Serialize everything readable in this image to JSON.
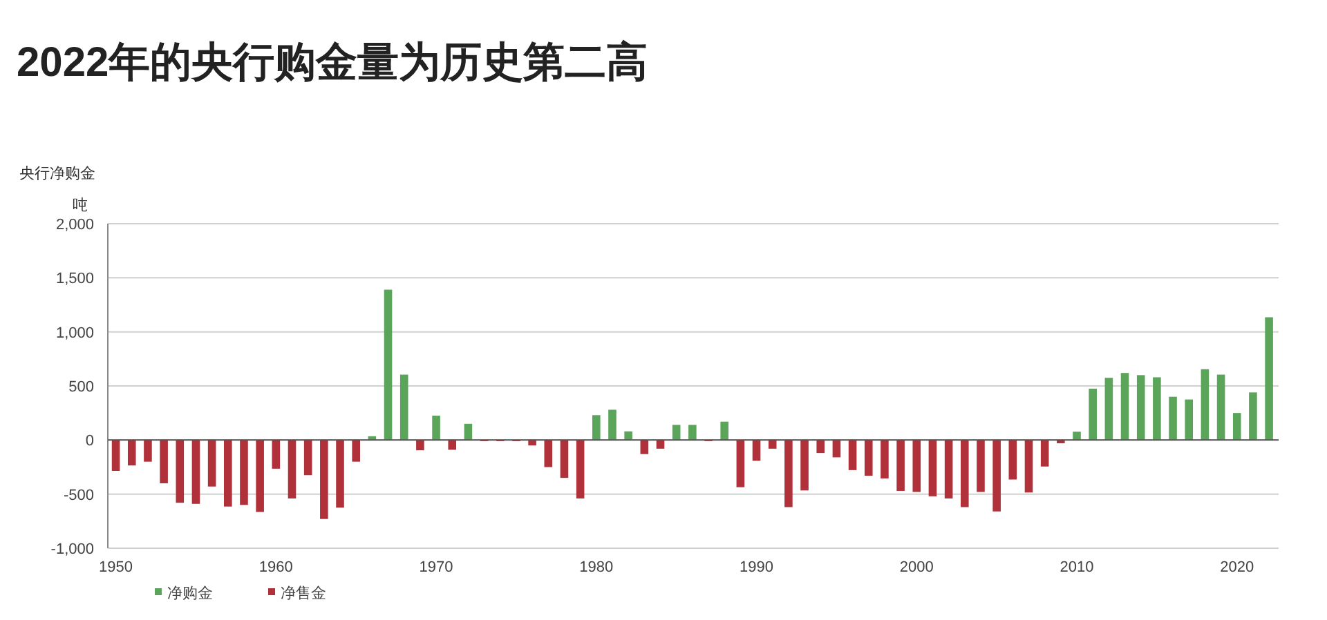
{
  "chart_data": {
    "type": "bar",
    "title": "2022年的央行购金量为历史第二高",
    "subtitle": "央行净购金",
    "ylabel": "吨",
    "x": [
      1950,
      1951,
      1952,
      1953,
      1954,
      1955,
      1956,
      1957,
      1958,
      1959,
      1960,
      1961,
      1962,
      1963,
      1964,
      1965,
      1966,
      1967,
      1968,
      1969,
      1970,
      1971,
      1972,
      1973,
      1974,
      1975,
      1976,
      1977,
      1978,
      1979,
      1980,
      1981,
      1982,
      1983,
      1984,
      1985,
      1986,
      1987,
      1988,
      1989,
      1990,
      1991,
      1992,
      1993,
      1994,
      1995,
      1996,
      1997,
      1998,
      1999,
      2000,
      2001,
      2002,
      2003,
      2004,
      2005,
      2006,
      2007,
      2008,
      2009,
      2010,
      2011,
      2012,
      2013,
      2014,
      2015,
      2016,
      2017,
      2018,
      2019,
      2020,
      2021,
      2022
    ],
    "series": [
      {
        "name": "净购金",
        "color": "#5aa55a",
        "values": [
          null,
          null,
          null,
          null,
          null,
          null,
          null,
          null,
          null,
          null,
          null,
          null,
          null,
          null,
          null,
          null,
          35,
          1390,
          605,
          null,
          225,
          null,
          150,
          null,
          null,
          null,
          null,
          null,
          null,
          null,
          230,
          280,
          80,
          null,
          null,
          140,
          140,
          null,
          170,
          null,
          null,
          null,
          null,
          null,
          null,
          null,
          null,
          null,
          null,
          null,
          null,
          null,
          null,
          null,
          null,
          null,
          null,
          null,
          null,
          null,
          77,
          475,
          575,
          620,
          600,
          580,
          400,
          375,
          655,
          605,
          250,
          440,
          1135
        ]
      },
      {
        "name": "净售金",
        "color": "#b0313a",
        "values": [
          -285,
          -235,
          -200,
          -400,
          -580,
          -590,
          -430,
          -615,
          -600,
          -665,
          -265,
          -540,
          -325,
          -730,
          -625,
          -200,
          null,
          null,
          null,
          -95,
          null,
          -90,
          null,
          -10,
          -10,
          -10,
          -50,
          -250,
          -350,
          -540,
          null,
          null,
          null,
          -130,
          -80,
          null,
          null,
          -10,
          null,
          -436,
          -192,
          -80,
          -620,
          -466,
          -120,
          -160,
          -278,
          -330,
          -355,
          -470,
          -480,
          -520,
          -540,
          -620,
          -480,
          -660,
          -365,
          -485,
          -245,
          -30,
          null,
          null,
          null,
          null,
          null,
          null,
          null,
          null,
          null,
          null,
          null,
          null,
          null
        ]
      }
    ],
    "xlim": [
      1949.5,
      2022.6
    ],
    "xticks": [
      1950,
      1960,
      1970,
      1980,
      1990,
      2000,
      2010,
      2020
    ],
    "ylim": [
      -1000,
      2000
    ],
    "yticks": [
      {
        "value": -1000,
        "label": "-1,000"
      },
      {
        "value": -500,
        "label": "-500"
      },
      {
        "value": 0,
        "label": "0"
      },
      {
        "value": 500,
        "label": "500"
      },
      {
        "value": 1000,
        "label": "1,000"
      },
      {
        "value": 1500,
        "label": "1,500"
      },
      {
        "value": 2000,
        "label": "2,000"
      }
    ],
    "grid": "y",
    "legend": "bottom left"
  }
}
